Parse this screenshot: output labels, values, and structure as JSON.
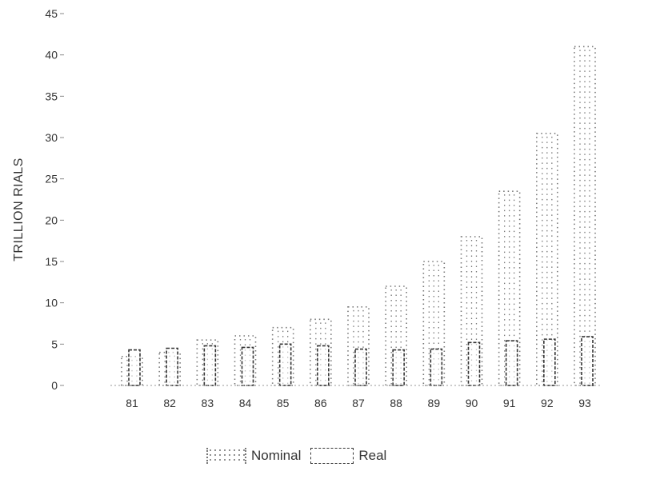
{
  "chart_data": {
    "type": "bar",
    "categories": [
      "81",
      "82",
      "83",
      "84",
      "85",
      "86",
      "87",
      "88",
      "89",
      "90",
      "91",
      "92",
      "93"
    ],
    "series": [
      {
        "name": "Nominal",
        "values": [
          3.5,
          4.0,
          5.5,
          6.0,
          7.0,
          8.0,
          9.5,
          12.0,
          15.0,
          18.0,
          23.5,
          30.5,
          41.0
        ]
      },
      {
        "name": "Real",
        "values": [
          4.3,
          4.5,
          4.8,
          4.6,
          5.0,
          4.8,
          4.4,
          4.3,
          4.4,
          5.2,
          5.4,
          5.6,
          5.9
        ]
      }
    ],
    "ylabel": "TRILLION RIALS",
    "xlabel": "",
    "ylim": [
      0,
      45
    ],
    "yticks": [
      0,
      5,
      10,
      15,
      20,
      25,
      30,
      35,
      40,
      45
    ],
    "ytick_labels": [
      "0",
      "5",
      "10",
      "15",
      "20",
      "25",
      "30",
      "35",
      "40",
      "45"
    ],
    "grid": false,
    "legend_position": "bottom"
  },
  "legend": {
    "nominal_label": "Nominal",
    "real_label": "Real"
  },
  "colors": {
    "nominal": "#777777",
    "real": "#333333"
  }
}
